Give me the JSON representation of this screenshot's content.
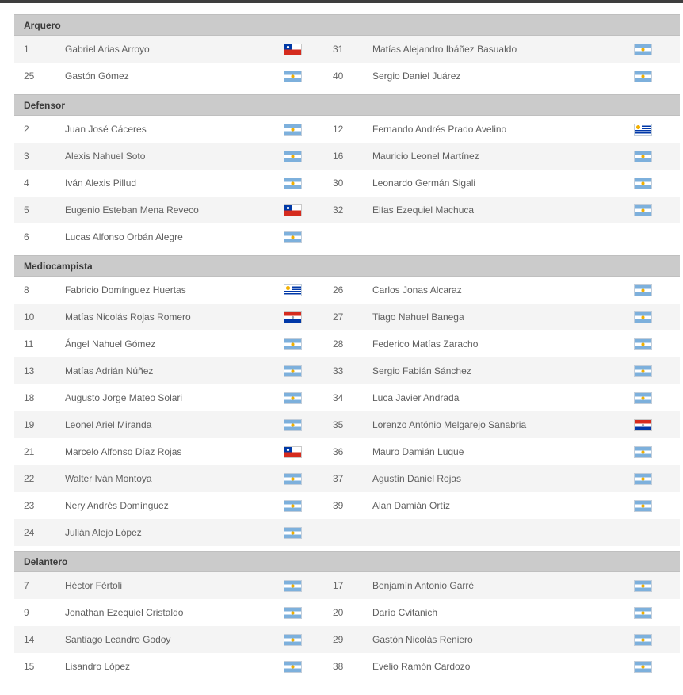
{
  "page": {
    "top_strip_color": "#3e3e3e",
    "header_bg_color": "#cbcbcb",
    "alt_row_color": "#f4f4f4"
  },
  "flag_names": {
    "ar": "argentina-flag-icon",
    "cl": "chile-flag-icon",
    "uy": "uruguay-flag-icon",
    "py": "paraguay-flag-icon"
  },
  "sections": [
    {
      "title": "Arquero",
      "rows": [
        {
          "left": {
            "num": "1",
            "name": "Gabriel Arias Arroyo",
            "flag": "cl"
          },
          "right": {
            "num": "31",
            "name": "Matías Alejandro Ibáñez Basualdo",
            "flag": "ar"
          }
        },
        {
          "left": {
            "num": "25",
            "name": "Gastón Gómez",
            "flag": "ar"
          },
          "right": {
            "num": "40",
            "name": "Sergio Daniel Juárez",
            "flag": "ar"
          }
        }
      ]
    },
    {
      "title": "Defensor",
      "rows": [
        {
          "left": {
            "num": "2",
            "name": "Juan José Cáceres",
            "flag": "ar"
          },
          "right": {
            "num": "12",
            "name": "Fernando Andrés Prado Avelino",
            "flag": "uy"
          }
        },
        {
          "left": {
            "num": "3",
            "name": "Alexis Nahuel Soto",
            "flag": "ar"
          },
          "right": {
            "num": "16",
            "name": "Mauricio Leonel Martínez",
            "flag": "ar"
          }
        },
        {
          "left": {
            "num": "4",
            "name": "Iván Alexis Pillud",
            "flag": "ar"
          },
          "right": {
            "num": "30",
            "name": "Leonardo Germán Sigali",
            "flag": "ar"
          }
        },
        {
          "left": {
            "num": "5",
            "name": "Eugenio Esteban Mena Reveco",
            "flag": "cl"
          },
          "right": {
            "num": "32",
            "name": "Elías Ezequiel Machuca",
            "flag": "ar"
          }
        },
        {
          "left": {
            "num": "6",
            "name": "Lucas Alfonso Orbán Alegre",
            "flag": "ar"
          },
          "right": null
        }
      ]
    },
    {
      "title": "Mediocampista",
      "rows": [
        {
          "left": {
            "num": "8",
            "name": "Fabricio Domínguez Huertas",
            "flag": "uy"
          },
          "right": {
            "num": "26",
            "name": "Carlos Jonas Alcaraz",
            "flag": "ar"
          }
        },
        {
          "left": {
            "num": "10",
            "name": "Matías Nicolás Rojas Romero",
            "flag": "py"
          },
          "right": {
            "num": "27",
            "name": "Tiago Nahuel Banega",
            "flag": "ar"
          }
        },
        {
          "left": {
            "num": "11",
            "name": "Ángel Nahuel Gómez",
            "flag": "ar"
          },
          "right": {
            "num": "28",
            "name": "Federico Matías Zaracho",
            "flag": "ar"
          }
        },
        {
          "left": {
            "num": "13",
            "name": "Matías Adrián Núñez",
            "flag": "ar"
          },
          "right": {
            "num": "33",
            "name": "Sergio Fabián Sánchez",
            "flag": "ar"
          }
        },
        {
          "left": {
            "num": "18",
            "name": "Augusto Jorge Mateo Solari",
            "flag": "ar"
          },
          "right": {
            "num": "34",
            "name": "Luca Javier Andrada",
            "flag": "ar"
          }
        },
        {
          "left": {
            "num": "19",
            "name": "Leonel Ariel Miranda",
            "flag": "ar"
          },
          "right": {
            "num": "35",
            "name": "Lorenzo António Melgarejo Sanabria",
            "flag": "py"
          }
        },
        {
          "left": {
            "num": "21",
            "name": "Marcelo Alfonso Díaz Rojas",
            "flag": "cl"
          },
          "right": {
            "num": "36",
            "name": "Mauro Damián Luque",
            "flag": "ar"
          }
        },
        {
          "left": {
            "num": "22",
            "name": "Walter Iván Montoya",
            "flag": "ar"
          },
          "right": {
            "num": "37",
            "name": "Agustín Daniel Rojas",
            "flag": "ar"
          }
        },
        {
          "left": {
            "num": "23",
            "name": "Nery Andrés Domínguez",
            "flag": "ar"
          },
          "right": {
            "num": "39",
            "name": "Alan Damián Ortíz",
            "flag": "ar"
          }
        },
        {
          "left": {
            "num": "24",
            "name": "Julián Alejo López",
            "flag": "ar"
          },
          "right": null
        }
      ]
    },
    {
      "title": "Delantero",
      "rows": [
        {
          "left": {
            "num": "7",
            "name": "Héctor Fértoli",
            "flag": "ar"
          },
          "right": {
            "num": "17",
            "name": "Benjamín Antonio Garré",
            "flag": "ar"
          }
        },
        {
          "left": {
            "num": "9",
            "name": "Jonathan Ezequiel Cristaldo",
            "flag": "ar"
          },
          "right": {
            "num": "20",
            "name": "Darío Cvitanich",
            "flag": "ar"
          }
        },
        {
          "left": {
            "num": "14",
            "name": "Santiago Leandro Godoy",
            "flag": "ar"
          },
          "right": {
            "num": "29",
            "name": "Gastón Nicolás Reniero",
            "flag": "ar"
          }
        },
        {
          "left": {
            "num": "15",
            "name": "Lisandro López",
            "flag": "ar"
          },
          "right": {
            "num": "38",
            "name": "Evelio Ramón Cardozo",
            "flag": "ar"
          }
        }
      ]
    }
  ]
}
